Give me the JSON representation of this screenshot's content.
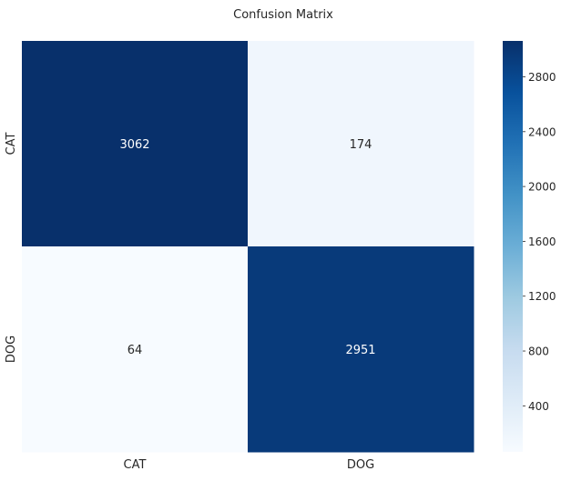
{
  "chart_data": {
    "type": "heatmap",
    "title": "Confusion Matrix",
    "xlabel": "",
    "ylabel": "",
    "x_categories": [
      "CAT",
      "DOG"
    ],
    "y_categories": [
      "CAT",
      "DOG"
    ],
    "values": [
      [
        3062,
        174
      ],
      [
        64,
        2951
      ]
    ],
    "colormap": "Blues",
    "colormap_stops": [
      "#f7fbff",
      "#deebf7",
      "#c6dbef",
      "#9ecae1",
      "#6baed6",
      "#4292c6",
      "#2171b5",
      "#08519c",
      "#08306b"
    ],
    "color_range": [
      64,
      3062
    ],
    "colorbar": {
      "ticks": [
        400,
        800,
        1200,
        1600,
        2000,
        2400,
        2800
      ]
    },
    "cell_text_colors": {
      "dark": "#262626",
      "light": "#ffffff"
    },
    "grid": false
  }
}
